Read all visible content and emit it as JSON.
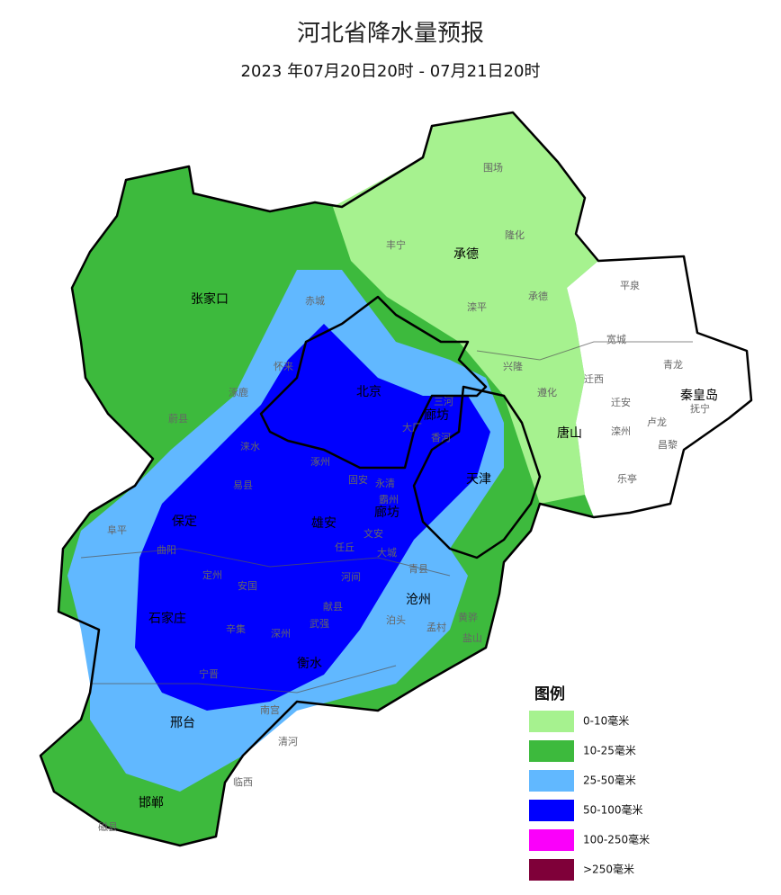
{
  "header": {
    "title": "河北省降水量预报",
    "subtitle": "2023 年07月20日20时 - 07月21日20时"
  },
  "legend": {
    "title": "图例",
    "items": [
      {
        "label": "0-10毫米",
        "color": "#a6f28f"
      },
      {
        "label": "10-25毫米",
        "color": "#3dba3d"
      },
      {
        "label": "25-50毫米",
        "color": "#61b8ff"
      },
      {
        "label": "50-100毫米",
        "color": "#0000fe"
      },
      {
        "label": "100-250毫米",
        "color": "#fa00fa"
      },
      {
        "label": ">250毫米",
        "color": "#7f0039"
      }
    ]
  },
  "cities": [
    "张家口",
    "承德",
    "北京",
    "廊坊",
    "唐山",
    "秦皇岛",
    "天津",
    "保定",
    "雄安",
    "廊坊",
    "沧州",
    "石家庄",
    "衡水",
    "邢台",
    "邯郸"
  ],
  "counties": [
    "围场",
    "隆化",
    "丰宁",
    "滦平",
    "承德",
    "平泉",
    "赤城",
    "怀来",
    "涿鹿",
    "涞水",
    "易县",
    "涿州",
    "固安",
    "永清",
    "霸州",
    "蔚县",
    "阜平",
    "曲阳",
    "定州",
    "安国",
    "任丘",
    "河间",
    "献县",
    "泊头",
    "辛集",
    "深州",
    "武强",
    "宁晋",
    "南宫",
    "清河",
    "临西",
    "磁县",
    "迁安",
    "滦州",
    "乐亭",
    "昌黎",
    "抚宁",
    "卢龙",
    "迁西",
    "遵化",
    "兴隆",
    "宽城",
    "青龙",
    "三河",
    "大厂",
    "香河",
    "文安",
    "大城",
    "青县",
    "黄骅",
    "盐山",
    "孟村"
  ]
}
